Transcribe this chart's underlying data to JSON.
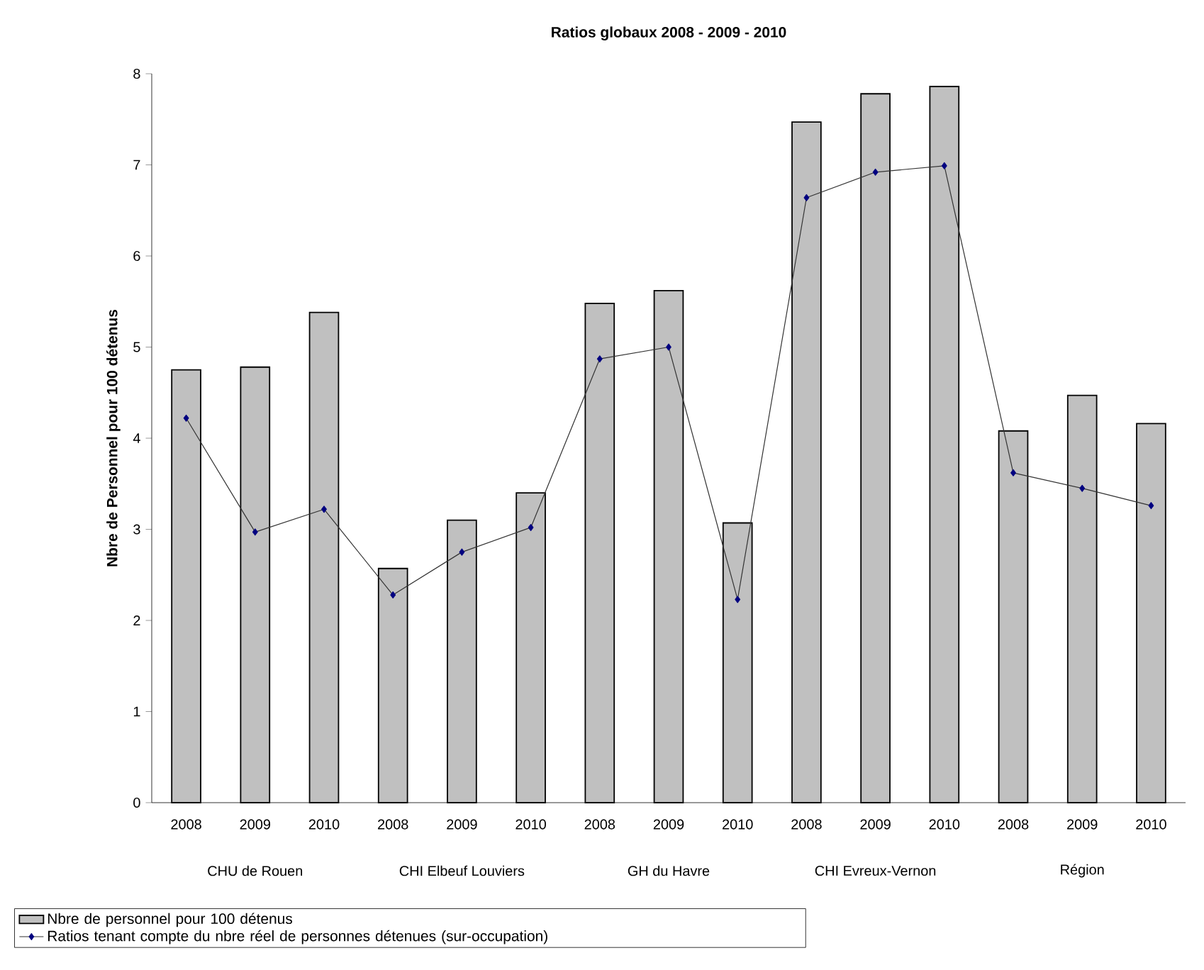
{
  "chart_data": {
    "type": "bar",
    "title": "Ratios globaux 2008 - 2009 - 2010",
    "ylabel": "Nbre de Personnel pour 100 détenus",
    "categories": [
      "2008",
      "2009",
      "2010",
      "2008",
      "2009",
      "2010",
      "2008",
      "2009",
      "2010",
      "2008",
      "2009",
      "2010",
      "2008",
      "2009",
      "2010"
    ],
    "annotations": [
      "CHU de Rouen",
      "CHI Elbeuf Louviers",
      "GH du Havre",
      "CHI Evreux-Vernon",
      "Région"
    ],
    "series": [
      {
        "name": "Nbre de personnel pour 100 détenus",
        "color": "#c0c0c0",
        "values": [
          4.75,
          4.78,
          5.38,
          2.57,
          3.1,
          3.4,
          5.48,
          5.62,
          3.07,
          7.47,
          7.78,
          7.86,
          4.08,
          4.47,
          4.16
        ]
      },
      {
        "name": "Ratios tenant compte du nbre réel de personnes détenues (sur-occupation)",
        "type": "line",
        "color": "#000080",
        "marker": "diamond",
        "values": [
          4.22,
          2.97,
          3.22,
          2.28,
          2.75,
          3.02,
          4.87,
          5.0,
          2.23,
          6.64,
          6.92,
          6.99,
          3.62,
          3.45,
          3.26
        ]
      }
    ],
    "ylim": [
      0,
      8
    ],
    "yticks": [
      0,
      1,
      2,
      3,
      4,
      5,
      6,
      7,
      8
    ],
    "legend": "bottom"
  }
}
